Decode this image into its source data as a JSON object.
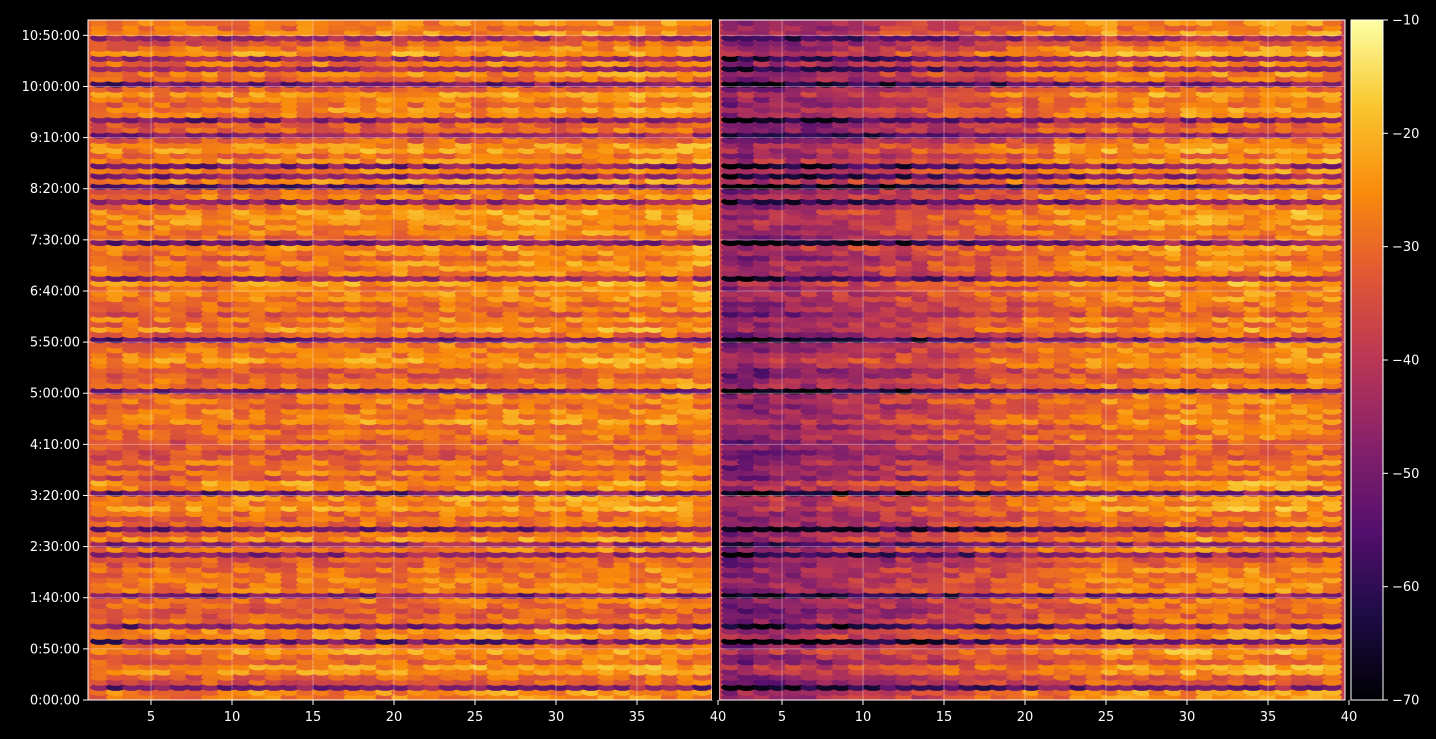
{
  "chart_data": {
    "type": "heatmap",
    "title": "",
    "xlabel": "",
    "ylabel": "",
    "panels": [
      {
        "name": "",
        "x_range": [
          1.5,
          39.8
        ]
      },
      {
        "name": "",
        "x_range": [
          0.5,
          39.8
        ]
      }
    ],
    "x_ticks": [
      {
        "v": 5,
        "label": "5"
      },
      {
        "v": 10,
        "label": "10"
      },
      {
        "v": 15,
        "label": "15"
      },
      {
        "v": 20,
        "label": "20"
      },
      {
        "v": 25,
        "label": "25"
      },
      {
        "v": 30,
        "label": "30"
      },
      {
        "v": 35,
        "label": "35"
      },
      {
        "v": 40,
        "label": "40"
      }
    ],
    "x_ticks_right": [
      {
        "v": 5,
        "label": "5"
      },
      {
        "v": 10,
        "label": "10"
      },
      {
        "v": 15,
        "label": "15"
      },
      {
        "v": 20,
        "label": "20"
      },
      {
        "v": 25,
        "label": "25"
      },
      {
        "v": 30,
        "label": "30"
      },
      {
        "v": 35,
        "label": "35"
      },
      {
        "v": 40,
        "label": "40"
      }
    ],
    "y_range_min": [
      0,
      665
    ],
    "y_ticks": [
      {
        "v": 0,
        "label": "0:00:00"
      },
      {
        "v": 50,
        "label": "0:50:00"
      },
      {
        "v": 100,
        "label": "1:40:00"
      },
      {
        "v": 150,
        "label": "2:30:00"
      },
      {
        "v": 200,
        "label": "3:20:00"
      },
      {
        "v": 250,
        "label": "4:10:00"
      },
      {
        "v": 300,
        "label": "5:00:00"
      },
      {
        "v": 350,
        "label": "5:50:00"
      },
      {
        "v": 400,
        "label": "6:40:00"
      },
      {
        "v": 450,
        "label": "7:30:00"
      },
      {
        "v": 500,
        "label": "8:20:00"
      },
      {
        "v": 550,
        "label": "9:10:00"
      },
      {
        "v": 600,
        "label": "10:00:00"
      },
      {
        "v": 650,
        "label": "10:50:00"
      }
    ],
    "colorbar": {
      "colormap": "inferno",
      "range": [
        -70,
        -10
      ],
      "ticks": [
        {
          "v": -10,
          "label": "−10"
        },
        {
          "v": -20,
          "label": "−20"
        },
        {
          "v": -30,
          "label": "−30"
        },
        {
          "v": -40,
          "label": "−40"
        },
        {
          "v": -50,
          "label": "−50"
        },
        {
          "v": -60,
          "label": "−60"
        },
        {
          "v": -70,
          "label": "−70"
        }
      ]
    },
    "grid": true,
    "value_summary": {
      "typical_range": [
        -45,
        -18
      ],
      "left_panel_mean_approx": -30,
      "right_panel_low_x_mean_approx": -48,
      "dark_rows_approx_time_min": [
        72,
        100,
        150,
        200,
        300,
        350,
        500,
        550,
        600
      ]
    }
  },
  "colors": {
    "background": "#000000",
    "axis": "#ffffff",
    "grid": "#ffffff"
  }
}
